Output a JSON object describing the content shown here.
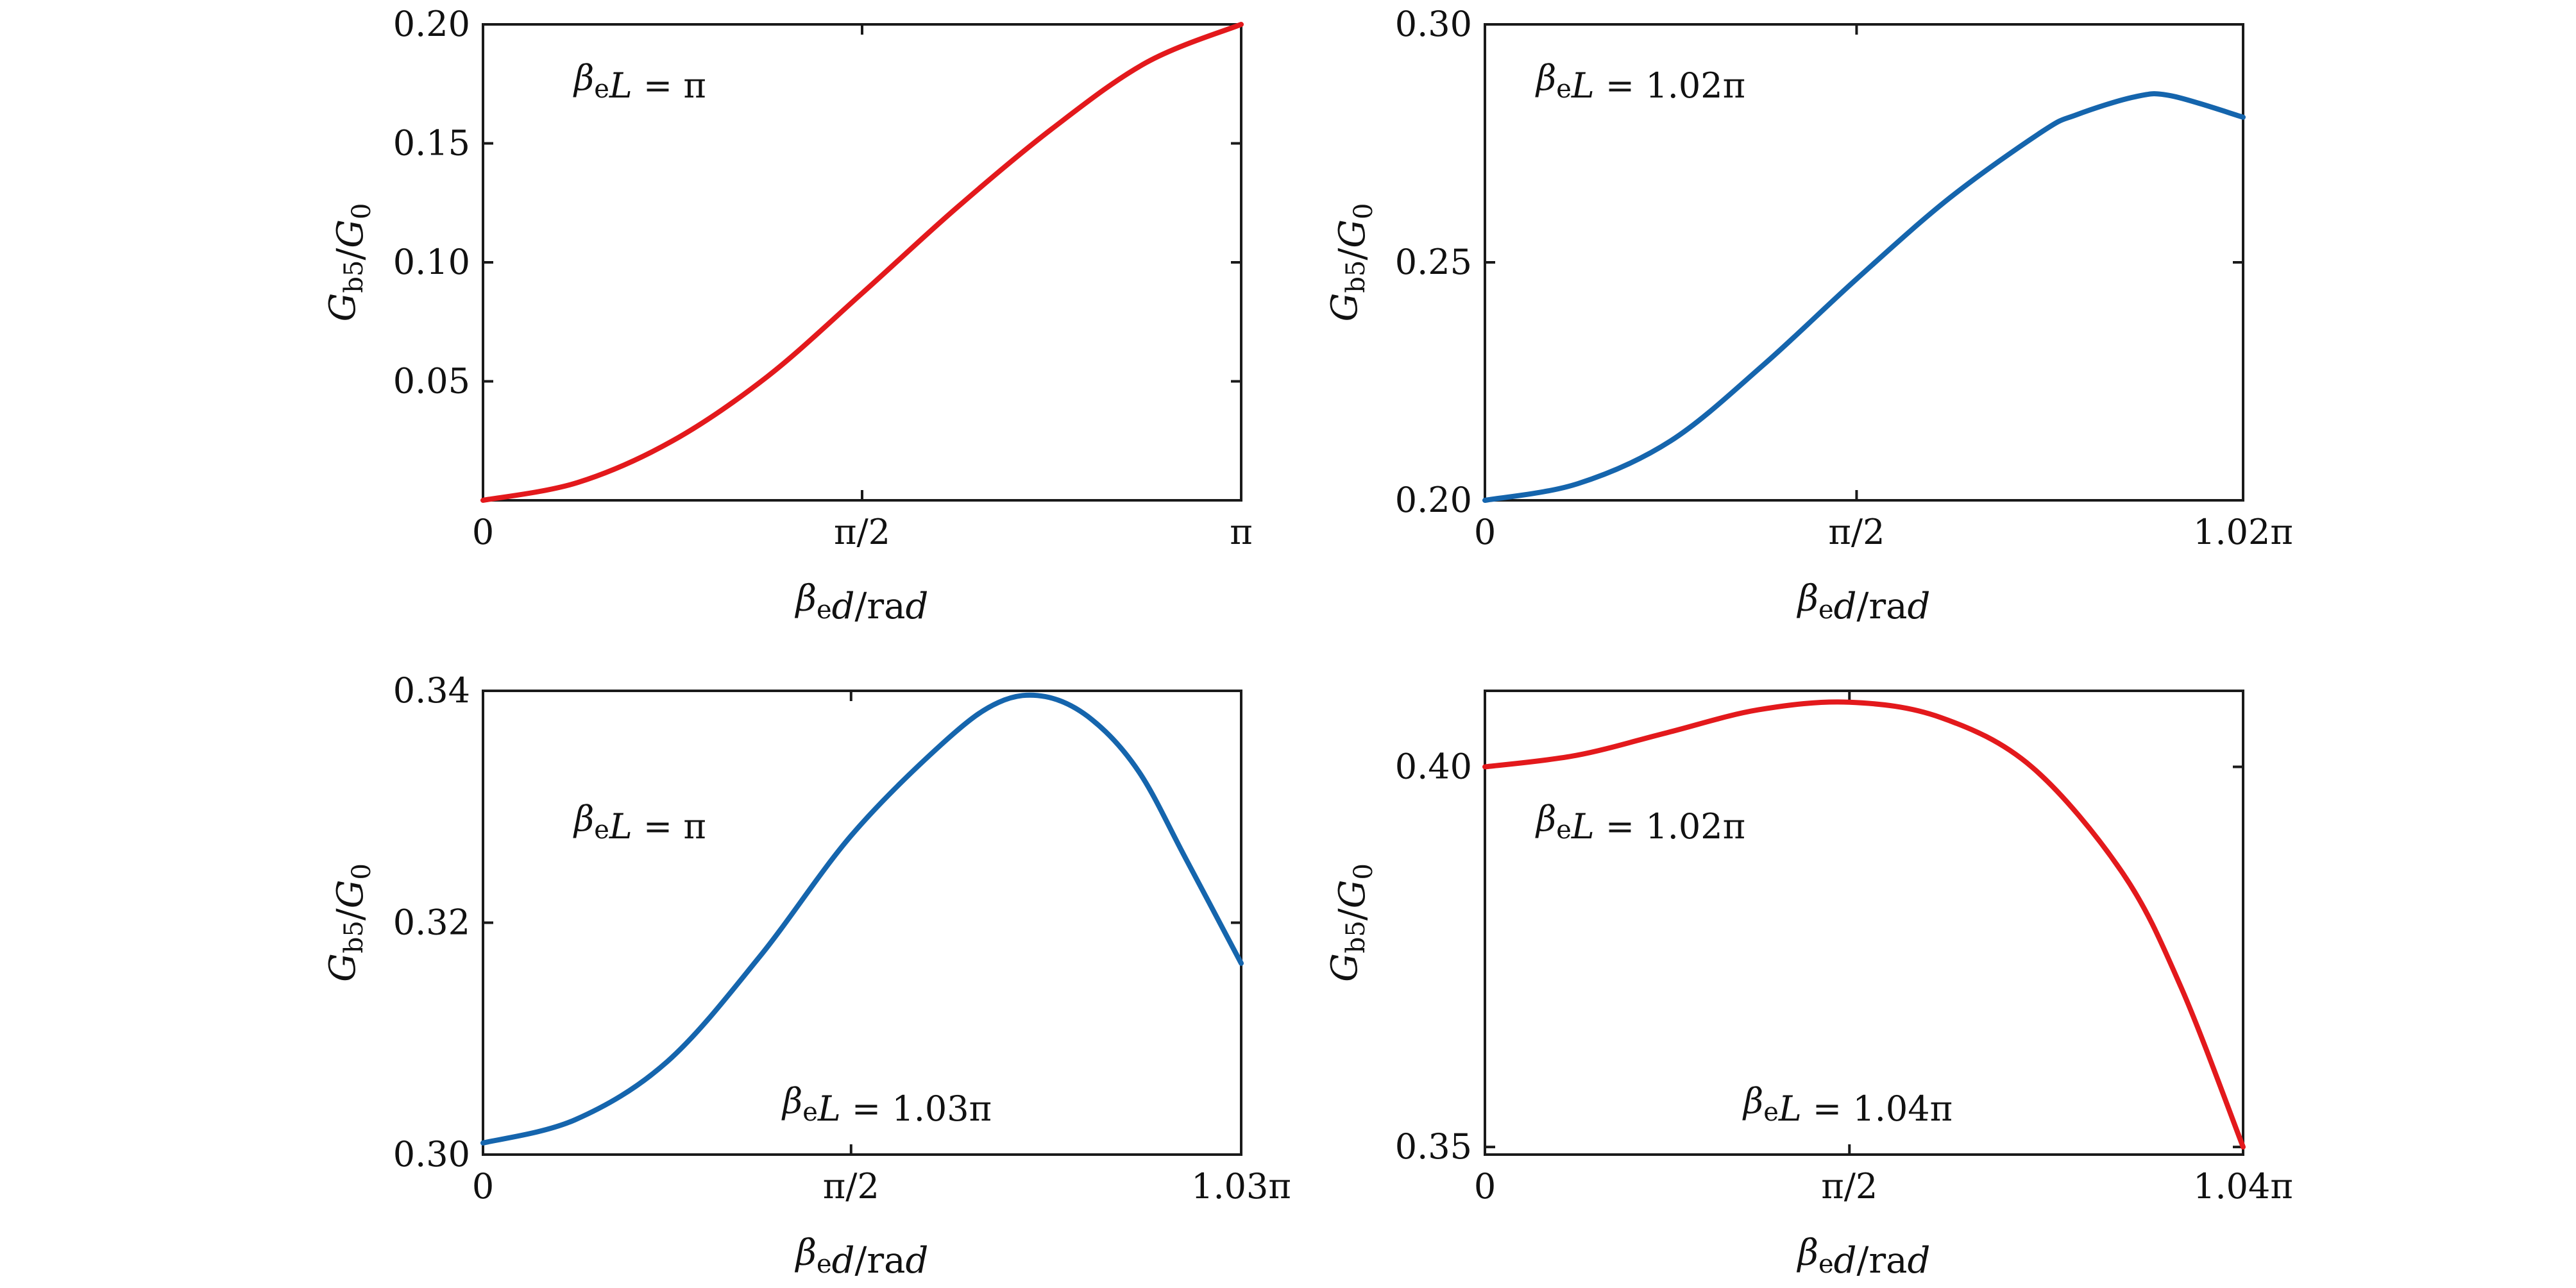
{
  "colors": {
    "red": "#e3191c",
    "blue": "#1565ad",
    "axis": "#1a1a1a"
  },
  "chart_data": [
    {
      "id": "a",
      "type": "line",
      "annotation": "βeL = π",
      "xlabel": "βed/rad",
      "ylabel": "Gb5/G0",
      "xlim": [
        0,
        3.1416
      ],
      "ylim": [
        0,
        0.2
      ],
      "xticks": [
        0,
        1.5708,
        3.1416
      ],
      "xtick_labels": [
        "0",
        "π/2",
        "π"
      ],
      "yticks": [
        0.05,
        0.1,
        0.15,
        0.2
      ],
      "ytick_labels": [
        "0.05",
        "0.10",
        "0.15",
        "0.20"
      ],
      "series": [
        {
          "name": "βeL = π",
          "color": "#e3191c",
          "x": [
            0,
            0.3927,
            0.7854,
            1.1781,
            1.5708,
            1.9635,
            2.3562,
            2.7489,
            3.1416
          ],
          "y": [
            0.0,
            0.0075,
            0.025,
            0.052,
            0.087,
            0.123,
            0.156,
            0.184,
            0.2
          ]
        }
      ]
    },
    {
      "id": "b",
      "type": "line",
      "annotation": "βeL = 1.02π",
      "xlabel": "βed/rad",
      "ylabel": "Gb5/G0",
      "xlim": [
        0,
        3.2044
      ],
      "ylim": [
        0.2,
        0.3
      ],
      "xticks": [
        0,
        1.5708,
        3.2044
      ],
      "xtick_labels": [
        "0",
        "π/2",
        "1.02π"
      ],
      "yticks": [
        0.2,
        0.25,
        0.3
      ],
      "ytick_labels": [
        "0.20",
        "0.25",
        "0.30"
      ],
      "series": [
        {
          "name": "βeL = 1.02π",
          "color": "#1565ad",
          "x": [
            0,
            0.3927,
            0.7854,
            1.1781,
            1.5708,
            1.9635,
            2.3562,
            2.5,
            2.7489,
            2.9,
            3.2044
          ],
          "y": [
            0.2,
            0.2035,
            0.2125,
            0.2285,
            0.2465,
            0.2635,
            0.2775,
            0.281,
            0.2848,
            0.285,
            0.2805
          ]
        }
      ]
    },
    {
      "id": "c",
      "type": "line",
      "annotation": "βeL = π",
      "annotation2": "βeL = 1.03π",
      "xlabel": "βed/rad",
      "ylabel": "Gb5/G0",
      "xlim": [
        0,
        3.2358
      ],
      "ylim": [
        0.3,
        0.34
      ],
      "xticks": [
        0,
        1.5708,
        3.2358
      ],
      "xtick_labels": [
        "0",
        "π/2",
        "1.03π"
      ],
      "yticks": [
        0.3,
        0.32,
        0.34
      ],
      "ytick_labels": [
        "0.30",
        "0.32",
        "0.34"
      ],
      "series": [
        {
          "name": "βeL = 1.03π",
          "color": "#1565ad",
          "x": [
            0,
            0.3927,
            0.7854,
            1.1781,
            1.5708,
            1.9635,
            2.2,
            2.4,
            2.6,
            2.8,
            3.0,
            3.2358
          ],
          "y": [
            0.301,
            0.303,
            0.308,
            0.317,
            0.3275,
            0.3355,
            0.339,
            0.3395,
            0.3375,
            0.333,
            0.3255,
            0.3165
          ]
        }
      ]
    },
    {
      "id": "d",
      "type": "line",
      "annotation": "βeL = 1.02π",
      "annotation2": "βeL = 1.04π",
      "xlabel": "βed/rad",
      "ylabel": "Gb5/G0",
      "xlim": [
        0,
        3.2673
      ],
      "ylim": [
        0.349,
        0.41
      ],
      "xticks": [
        0,
        1.5708,
        3.2673
      ],
      "xtick_labels": [
        "0",
        "π/2",
        "1.04π"
      ],
      "yticks": [
        0.35,
        0.4
      ],
      "ytick_labels": [
        "0.35",
        "0.40"
      ],
      "series": [
        {
          "name": "βeL = 1.04π",
          "color": "#e3191c",
          "x": [
            0,
            0.3927,
            0.7854,
            1.1781,
            1.5708,
            1.9635,
            2.3562,
            2.7489,
            3.0,
            3.2673
          ],
          "y": [
            0.4,
            0.4015,
            0.4045,
            0.4075,
            0.4085,
            0.4065,
            0.4,
            0.386,
            0.371,
            0.35
          ]
        }
      ]
    }
  ]
}
